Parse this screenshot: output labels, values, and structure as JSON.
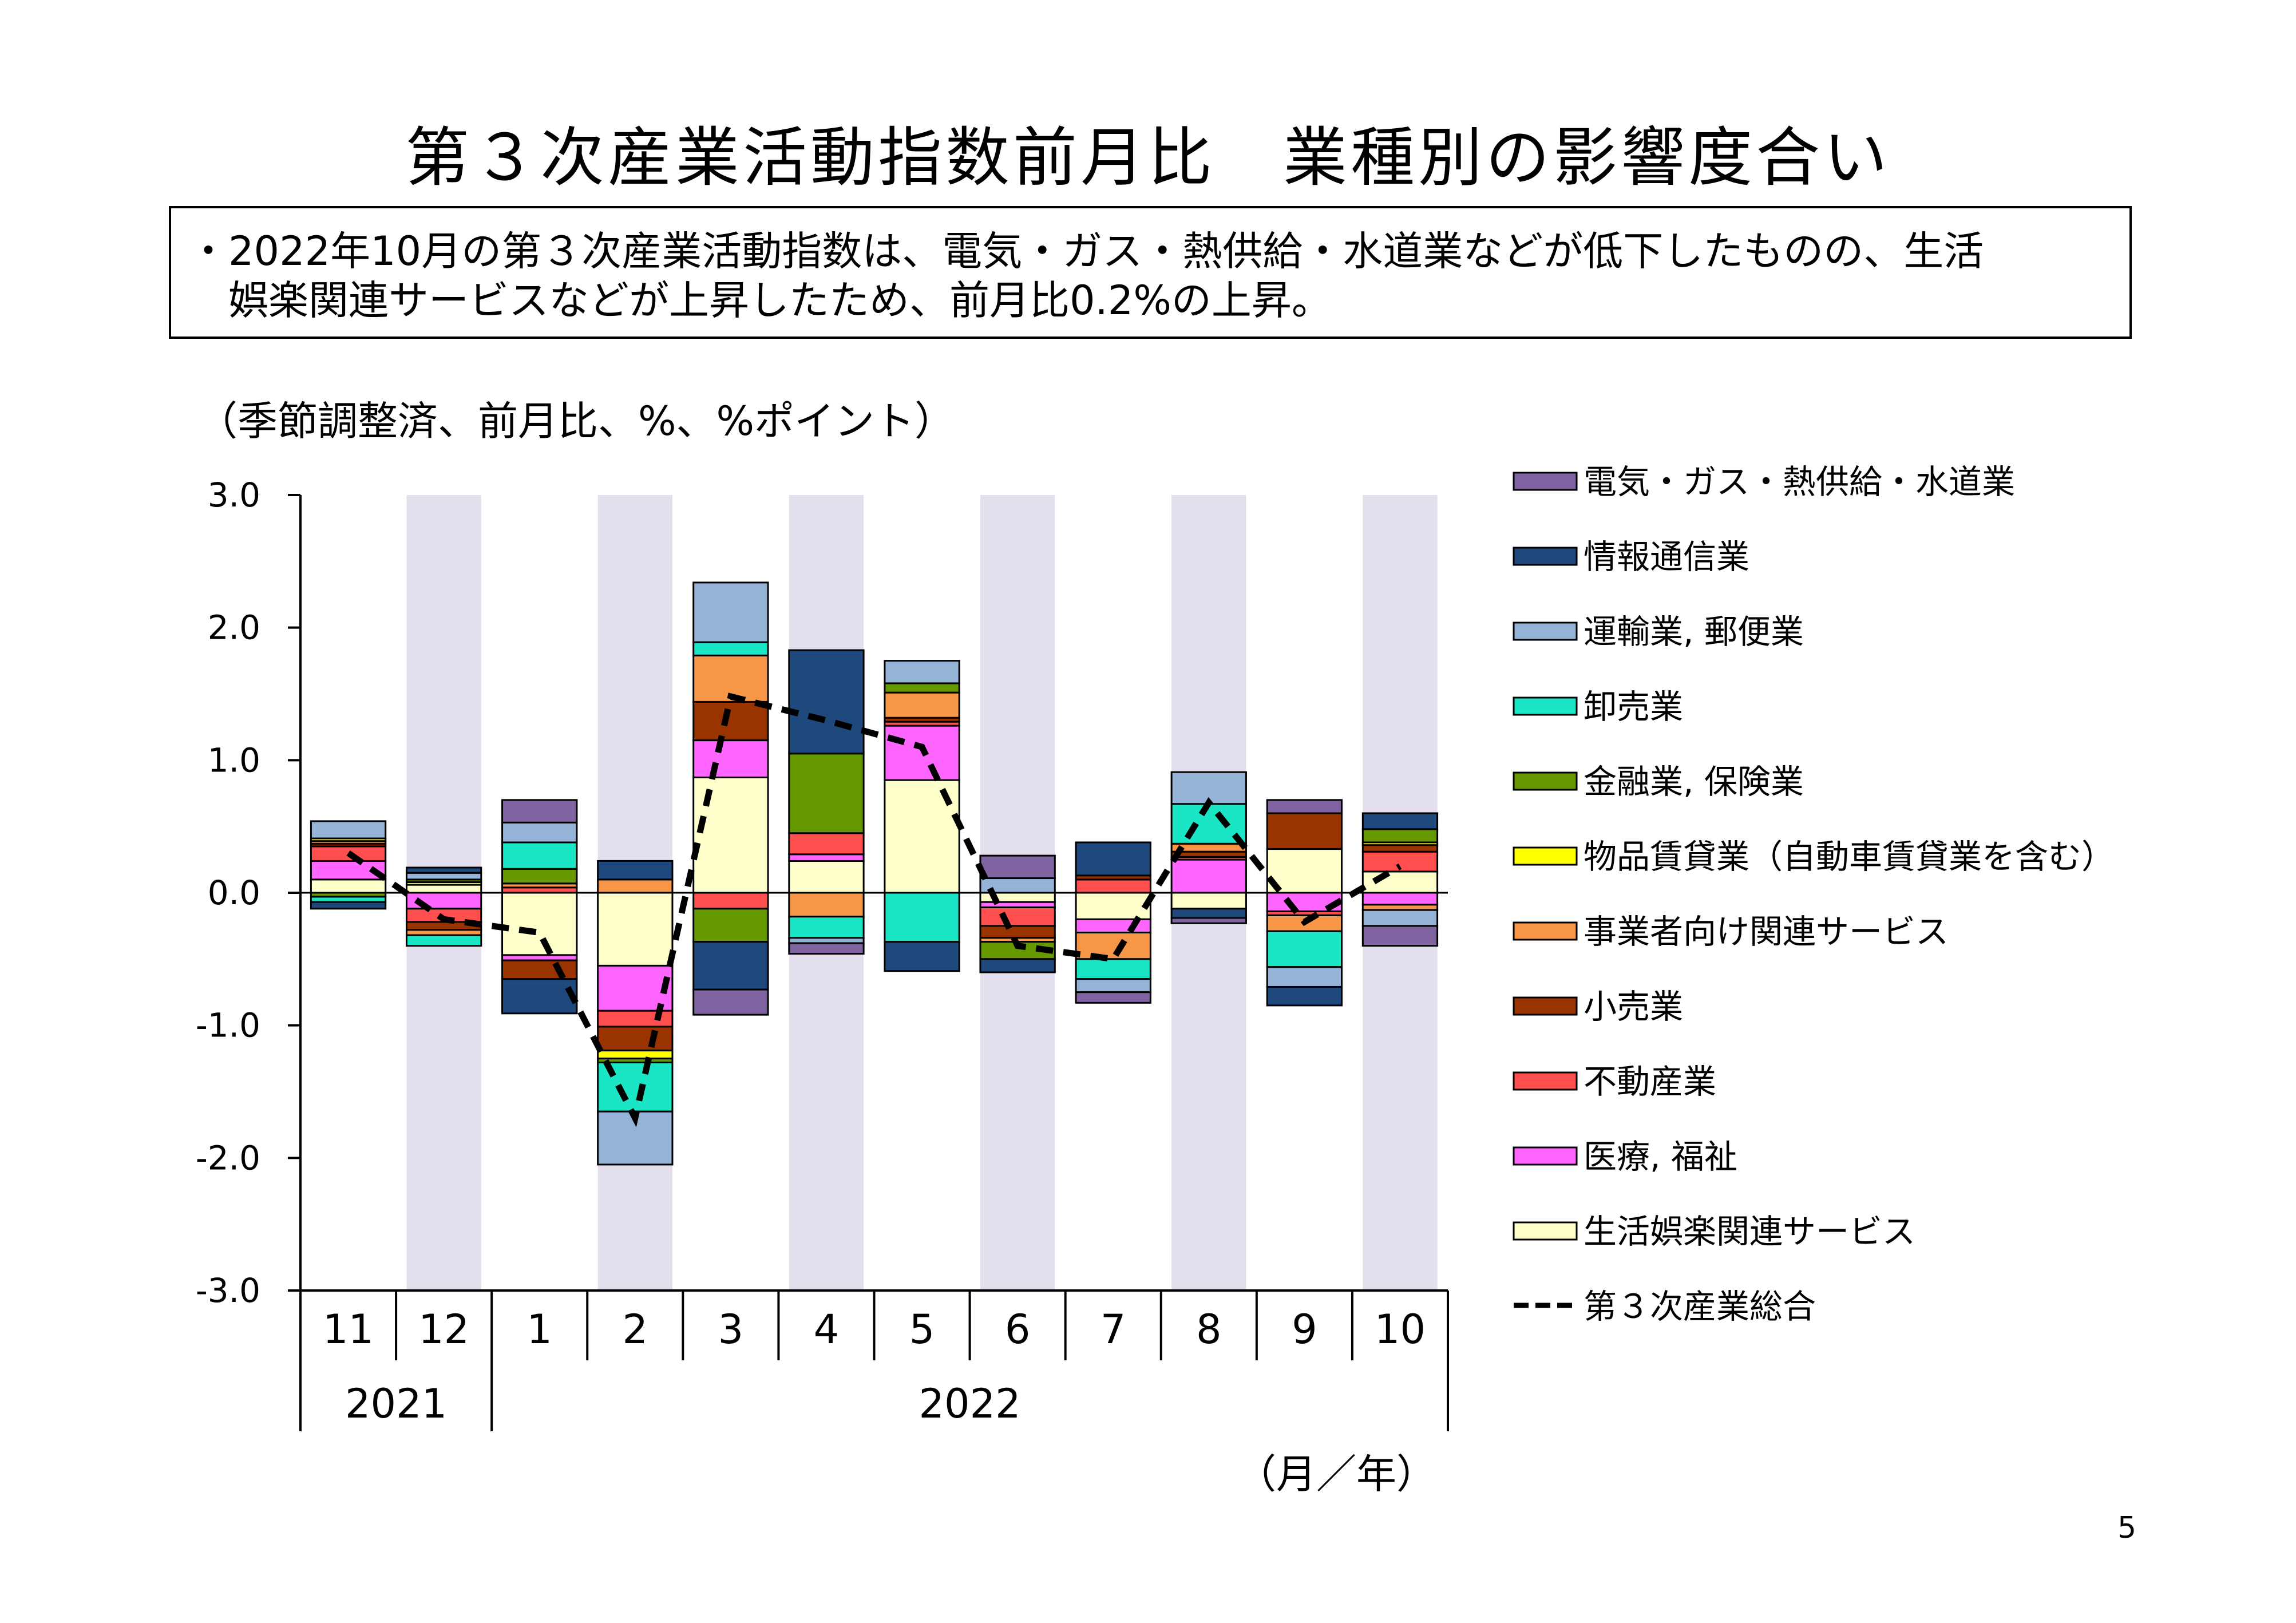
{
  "title": "第３次産業活動指数前月比　業種別の影響度合い",
  "summary": "・2022年10月の第３次産業活動指数は、電気・ガス・熱供給・水道業などが低下したものの、生活\n　娯楽関連サービスなどが上昇したため、前月比0.2%の上昇。",
  "page_number": "5",
  "chart_data": {
    "type": "bar",
    "stacked": true,
    "unit_label": "（季節調整済、前月比、%、%ポイント）",
    "x_axis_unit": "（月／年）",
    "categories": [
      "11",
      "12",
      "1",
      "2",
      "3",
      "4",
      "5",
      "6",
      "7",
      "8",
      "9",
      "10"
    ],
    "year_labels": [
      {
        "label": "2021",
        "from": 0,
        "to": 1
      },
      {
        "label": "2022",
        "from": 2,
        "to": 11
      }
    ],
    "ylim": [
      -3.0,
      3.0
    ],
    "yticks": [
      "3.0",
      "2.0",
      "1.0",
      "0.0",
      "-1.0",
      "-2.0",
      "-3.0"
    ],
    "shaded_categories": [
      1,
      3,
      5,
      7,
      9,
      11
    ],
    "shade_color": "#e3dfec",
    "series": [
      {
        "name": "生活娯楽関連サービス",
        "color": "#ffffcc",
        "values": [
          0.1,
          0.06,
          -0.47,
          -0.55,
          0.87,
          0.24,
          0.85,
          -0.07,
          -0.2,
          -0.12,
          0.33,
          0.16
        ]
      },
      {
        "name": "医療, 福祉",
        "color": "#ff66ff",
        "values": [
          0.14,
          -0.12,
          -0.04,
          -0.34,
          0.28,
          0.05,
          0.41,
          -0.04,
          -0.1,
          0.25,
          -0.14,
          -0.09
        ]
      },
      {
        "name": "不動産業",
        "color": "#ff4f4f",
        "values": [
          0.11,
          -0.1,
          0.04,
          -0.12,
          -0.12,
          0.16,
          0.03,
          -0.14,
          0.1,
          0.02,
          -0.03,
          0.15
        ]
      },
      {
        "name": "小売業",
        "color": "#993300",
        "values": [
          0.02,
          -0.06,
          -0.14,
          -0.18,
          0.29,
          0.0,
          0.03,
          -0.09,
          0.03,
          0.04,
          0.27,
          0.05
        ]
      },
      {
        "name": "事業者向け関連サービス",
        "color": "#f79646",
        "values": [
          0.02,
          -0.04,
          0.03,
          0.1,
          0.35,
          -0.18,
          0.19,
          -0.03,
          -0.2,
          0.06,
          -0.12,
          -0.04
        ]
      },
      {
        "name": "物品賃貸業（自動車賃貸業を含む）",
        "color": "#ffff00",
        "values": [
          0.02,
          0.02,
          0.0,
          -0.06,
          0.0,
          0.0,
          0.0,
          0.0,
          0.0,
          0.0,
          0.0,
          0.02
        ]
      },
      {
        "name": "金融業, 保険業",
        "color": "#669900",
        "values": [
          -0.03,
          0.02,
          0.11,
          -0.03,
          -0.25,
          0.6,
          0.07,
          -0.13,
          0.0,
          0.0,
          0.0,
          0.1
        ]
      },
      {
        "name": "卸売業",
        "color": "#1ae5c4",
        "values": [
          -0.04,
          -0.08,
          0.2,
          -0.37,
          0.1,
          -0.16,
          -0.37,
          0.0,
          -0.15,
          0.3,
          -0.27,
          0.0
        ]
      },
      {
        "name": "運輸業, 郵便業",
        "color": "#95b3d7",
        "values": [
          0.13,
          0.05,
          0.15,
          -0.4,
          0.45,
          -0.04,
          0.17,
          0.11,
          -0.1,
          0.24,
          -0.15,
          -0.12
        ]
      },
      {
        "name": "情報通信業",
        "color": "#1f497d",
        "values": [
          -0.05,
          0.04,
          -0.26,
          0.14,
          -0.36,
          0.78,
          -0.22,
          -0.1,
          0.25,
          -0.07,
          -0.14,
          0.12
        ]
      },
      {
        "name": "電気・ガス・熱供給・水道業",
        "color": "#8064a2",
        "values": [
          0.0,
          0.0,
          0.17,
          0.0,
          -0.19,
          -0.08,
          0.0,
          0.17,
          -0.08,
          -0.04,
          0.1,
          -0.15
        ]
      }
    ],
    "legend_order": [
      10,
      9,
      8,
      7,
      6,
      5,
      4,
      3,
      2,
      1,
      0
    ],
    "total_line": {
      "name": "第３次産業総合",
      "style": "dashed",
      "color": "#000000",
      "values": [
        0.3,
        -0.2,
        -0.3,
        -1.7,
        1.48,
        1.3,
        1.1,
        -0.4,
        -0.5,
        0.68,
        -0.22,
        0.2
      ]
    }
  }
}
